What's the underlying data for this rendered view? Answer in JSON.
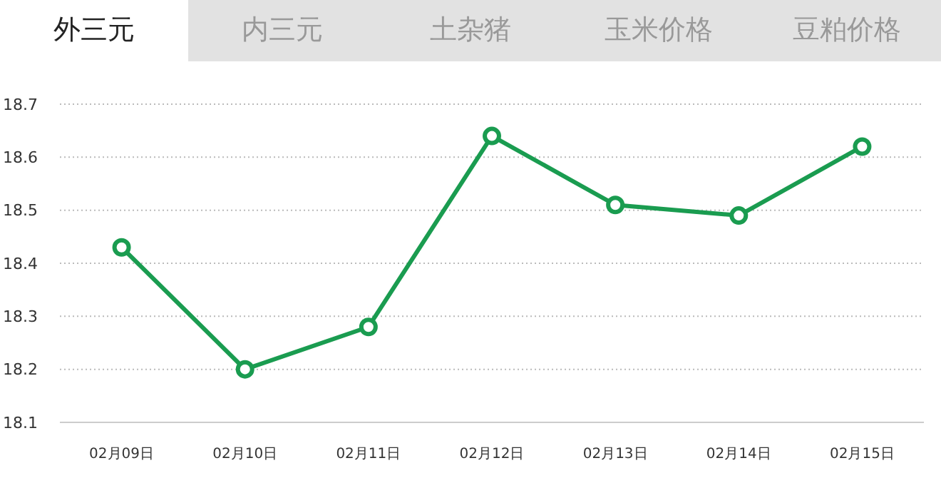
{
  "chart_data": {
    "type": "line",
    "title": "外三元",
    "annotations": [
      "内三元",
      "土杂猪",
      "玉米价格",
      "豆粕价格"
    ],
    "categories": [
      "02月09日",
      "02月10日",
      "02月11日",
      "02月12日",
      "02月13日",
      "02月14日",
      "02月15日"
    ],
    "series": [
      {
        "color": "#1a9c50",
        "values": [
          18.43,
          18.2,
          18.28,
          18.64,
          18.51,
          18.49,
          18.62
        ]
      }
    ],
    "ylim": [
      18.1,
      18.7
    ],
    "yticks": [
      18.1,
      18.2,
      18.3,
      18.4,
      18.5,
      18.6,
      18.7
    ],
    "grid": "y",
    "marker": "circle",
    "line_style": "solid"
  }
}
